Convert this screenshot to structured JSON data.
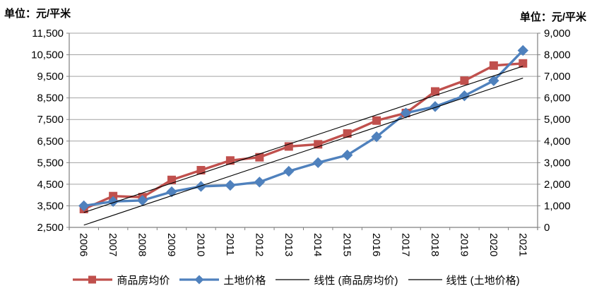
{
  "page": {
    "background": "#FFFFFF"
  },
  "chart_data": {
    "type": "line",
    "title": "",
    "categories": [
      "2006",
      "2007",
      "2008",
      "2009",
      "2010",
      "2011",
      "2012",
      "2013",
      "2014",
      "2015",
      "2016",
      "2017",
      "2018",
      "2019",
      "2020",
      "2021"
    ],
    "left_axis": {
      "title": "单位：元/平米",
      "min": 2500,
      "max": 11500,
      "step": 1000,
      "ticks": [
        "11,500",
        "10,500",
        "9,500",
        "8,500",
        "7,500",
        "6,500",
        "5,500",
        "4,500",
        "3,500",
        "2,500"
      ]
    },
    "right_axis": {
      "title": "单位：元/平米",
      "min": 0,
      "max": 9000,
      "step": 1000,
      "ticks": [
        "9,000",
        "8,000",
        "7,000",
        "6,000",
        "5,000",
        "4,000",
        "3,000",
        "2,000",
        "1,000",
        "0"
      ]
    },
    "series": [
      {
        "name": "商品房均价",
        "axis": "left",
        "color": "#C0504D",
        "marker": "square",
        "values": [
          3350,
          3950,
          3900,
          4700,
          5150,
          5600,
          5750,
          6250,
          6350,
          6850,
          7450,
          7800,
          8800,
          9300,
          10000,
          10100
        ]
      },
      {
        "name": "土地价格",
        "axis": "right",
        "color": "#4F81BD",
        "marker": "diamond",
        "values": [
          1000,
          1200,
          1250,
          1650,
          1900,
          1950,
          2100,
          2600,
          3000,
          3350,
          4200,
          5300,
          5600,
          6100,
          6800,
          8200
        ]
      }
    ],
    "trendlines": [
      {
        "name": "线性 (商品房均价)",
        "series": 0,
        "color": "#000000"
      },
      {
        "name": "线性 (土地价格)",
        "series": 1,
        "color": "#000000"
      }
    ],
    "legend": {
      "position": "bottom",
      "items": [
        "商品房均价",
        "土地价格",
        "线性 (商品房均价)",
        "线性 (土地价格)"
      ]
    },
    "grid": {
      "horizontal": true,
      "vertical": false,
      "color": "#A3A3A3"
    },
    "axis_line_color": "#808080",
    "tick_label_color": "#000000",
    "x_label_rotation_deg": 90
  }
}
